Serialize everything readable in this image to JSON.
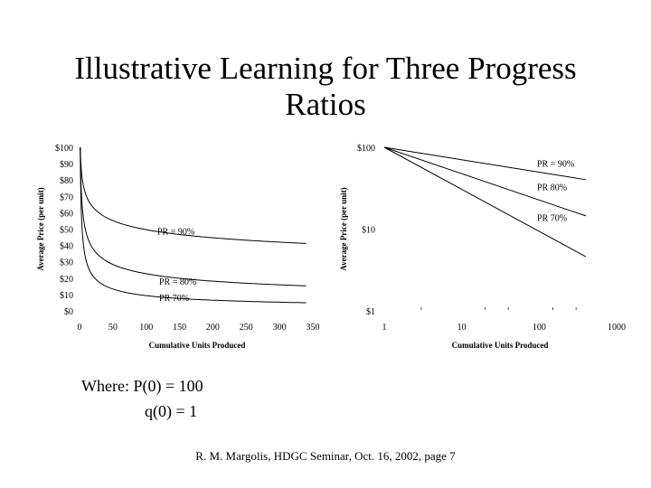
{
  "slide": {
    "title_line1": "Illustrative Learning for Three Progress",
    "title_line2": "Ratios",
    "where_line1": "Where:  P(0) = 100",
    "where_line2": "q(0) = 1",
    "footer": "R. M. Margolis, HDGC Seminar, Oct. 16, 2002, page 7"
  },
  "chart_data": [
    {
      "type": "line",
      "title": "",
      "xlabel": "Cumulative Units Produced",
      "ylabel": "Average Price (per unit)",
      "xlim": [
        0,
        350
      ],
      "ylim": [
        0,
        100
      ],
      "x_ticks": [
        "0",
        "50",
        "100",
        "150",
        "200",
        "250",
        "300",
        "350"
      ],
      "y_ticks": [
        "$0",
        "$10",
        "$20",
        "$30",
        "$40",
        "$50",
        "$60",
        "$70",
        "$80",
        "$90",
        "$100"
      ],
      "grid": false,
      "series": [
        {
          "name": "PR = 90%",
          "b": 0.152,
          "x": [
            1,
            2,
            5,
            10,
            25,
            50,
            100,
            150,
            200,
            250,
            300,
            340
          ],
          "values": [
            100,
            90,
            78.3,
            70.5,
            61.3,
            55.2,
            49.7,
            46.7,
            44.7,
            43.2,
            42.0,
            41.2
          ]
        },
        {
          "name": "PR = 80%",
          "b": 0.322,
          "x": [
            1,
            2,
            5,
            10,
            25,
            50,
            100,
            150,
            200,
            250,
            300,
            340
          ],
          "values": [
            100,
            80,
            59.6,
            47.7,
            35.4,
            28.3,
            22.7,
            19.9,
            18.2,
            16.9,
            15.9,
            15.3
          ]
        },
        {
          "name": "PR = 70%",
          "b": 0.515,
          "x": [
            1,
            2,
            5,
            10,
            25,
            50,
            100,
            150,
            200,
            250,
            300,
            340
          ],
          "values": [
            100,
            70,
            43.6,
            30.5,
            19.0,
            13.3,
            9.3,
            7.6,
            6.5,
            5.8,
            5.3,
            5.0
          ]
        }
      ],
      "labels": [
        {
          "text": "PR = 90%",
          "series": 0
        },
        {
          "text": "PR = 80%",
          "series": 1
        },
        {
          "text": "PR   70%",
          "series": 2
        }
      ]
    },
    {
      "type": "line",
      "title": "",
      "xlabel": "Cumulative Units Produced",
      "ylabel": "Average Price (per unit)",
      "x_scale": "log",
      "y_scale": "log",
      "xlim": [
        1,
        1000
      ],
      "ylim": [
        1,
        100
      ],
      "x_ticks": [
        "1",
        "10",
        "100",
        "1000"
      ],
      "y_ticks": [
        "$1",
        "$10",
        "$100"
      ],
      "grid": false,
      "series": [
        {
          "name": "PR = 90%",
          "x": [
            1,
            400
          ],
          "values": [
            100,
            40.2
          ]
        },
        {
          "name": "PR = 80%",
          "x": [
            1,
            400
          ],
          "values": [
            100,
            14.5
          ]
        },
        {
          "name": "PR = 70%",
          "x": [
            1,
            400
          ],
          "values": [
            100,
            4.6
          ]
        }
      ],
      "labels": [
        {
          "text": "PR = 90%",
          "series": 0
        },
        {
          "text": "PR    80%",
          "series": 1
        },
        {
          "text": "PR    70%",
          "series": 2
        }
      ]
    }
  ]
}
